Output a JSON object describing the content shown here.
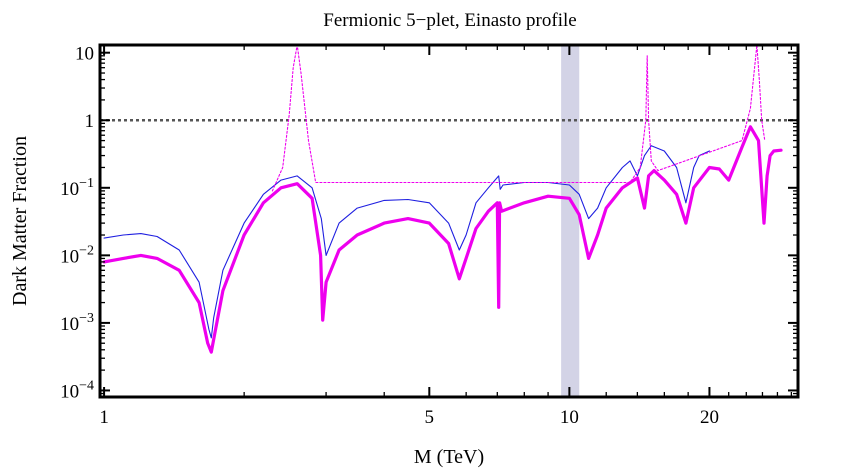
{
  "chart_data": {
    "type": "line",
    "title": "Fermionic 5−plet, Einasto profile",
    "xlabel": "M (TeV)",
    "ylabel": "Dark Matter Fraction",
    "xscale": "log",
    "yscale": "log",
    "xlim": [
      0.98,
      31
    ],
    "ylim": [
      8e-05,
      13
    ],
    "x_ticks": [
      {
        "value": 1,
        "label": "1"
      },
      {
        "value": 5,
        "label": "5"
      },
      {
        "value": 10,
        "label": "10"
      },
      {
        "value": 20,
        "label": "20"
      }
    ],
    "y_ticks": [
      {
        "value": 10,
        "base": "10",
        "exp": ""
      },
      {
        "value": 1,
        "base": "1",
        "exp": ""
      },
      {
        "value": 0.1,
        "base": "10",
        "exp": "−1"
      },
      {
        "value": 0.01,
        "base": "10",
        "exp": "−2"
      },
      {
        "value": 0.001,
        "base": "10",
        "exp": "−3"
      },
      {
        "value": 0.0001,
        "base": "10",
        "exp": "−4"
      }
    ],
    "reference_line": {
      "y": 1,
      "style": "dotted",
      "color": "#555555"
    },
    "shaded_band": {
      "x_range": [
        9.6,
        10.5
      ],
      "color": "#d3d3e6"
    },
    "series": [
      {
        "name": "blue-thin",
        "color": "#1f1fe0",
        "style": "solid",
        "x": [
          1.0,
          1.1,
          1.2,
          1.3,
          1.45,
          1.6,
          1.68,
          1.7,
          1.72,
          1.8,
          2.0,
          2.2,
          2.4,
          2.6,
          2.8,
          2.93,
          3.0,
          3.2,
          3.5,
          4.0,
          4.5,
          5.0,
          5.5,
          5.8,
          6.0,
          6.3,
          6.7,
          7.05,
          7.1,
          7.2,
          8.0,
          9.0,
          10.0,
          10.5,
          11.0,
          11.5,
          12.0,
          13.0,
          13.5,
          14.0,
          14.5,
          15.0,
          16.0,
          17.0,
          17.8,
          18.5,
          19.0,
          20.0
        ],
        "y": [
          0.018,
          0.02,
          0.021,
          0.019,
          0.012,
          0.004,
          0.0008,
          0.0006,
          0.0012,
          0.006,
          0.03,
          0.08,
          0.13,
          0.15,
          0.1,
          0.035,
          0.01,
          0.03,
          0.05,
          0.065,
          0.067,
          0.06,
          0.03,
          0.012,
          0.02,
          0.06,
          0.1,
          0.15,
          0.095,
          0.11,
          0.12,
          0.12,
          0.11,
          0.08,
          0.035,
          0.05,
          0.1,
          0.2,
          0.25,
          0.15,
          0.3,
          0.42,
          0.35,
          0.2,
          0.06,
          0.2,
          0.3,
          0.35
        ]
      },
      {
        "name": "magenta-thick",
        "color": "#ee00ee",
        "style": "solid-thick",
        "x": [
          1.0,
          1.1,
          1.2,
          1.3,
          1.45,
          1.6,
          1.67,
          1.7,
          1.73,
          1.8,
          2.0,
          2.2,
          2.4,
          2.6,
          2.8,
          2.92,
          2.95,
          3.0,
          3.2,
          3.5,
          4.0,
          4.5,
          5.0,
          5.5,
          5.8,
          6.0,
          6.3,
          6.7,
          7.0,
          7.05,
          7.08,
          7.15,
          8.0,
          9.0,
          10.0,
          10.5,
          11.0,
          11.5,
          12.0,
          13.0,
          14.0,
          14.5,
          14.8,
          15.2,
          16.0,
          17.0,
          17.8,
          18.5,
          20.0,
          21.0,
          22.0,
          23.5,
          24.5,
          25.5,
          26.2,
          26.6,
          27.0,
          27.5,
          28.5
        ],
        "y": [
          0.008,
          0.009,
          0.01,
          0.009,
          0.006,
          0.002,
          0.0005,
          0.00037,
          0.0007,
          0.003,
          0.02,
          0.06,
          0.1,
          0.115,
          0.07,
          0.01,
          0.0011,
          0.004,
          0.012,
          0.02,
          0.03,
          0.035,
          0.03,
          0.015,
          0.0045,
          0.009,
          0.025,
          0.045,
          0.06,
          0.0017,
          0.06,
          0.045,
          0.06,
          0.075,
          0.07,
          0.04,
          0.009,
          0.02,
          0.05,
          0.1,
          0.14,
          0.05,
          0.15,
          0.18,
          0.13,
          0.08,
          0.03,
          0.1,
          0.2,
          0.19,
          0.13,
          0.4,
          0.8,
          0.5,
          0.03,
          0.15,
          0.3,
          0.35,
          0.36
        ]
      },
      {
        "name": "magenta-dotted",
        "color": "#ee00ee",
        "style": "dotted",
        "x": [
          2.3,
          2.42,
          2.5,
          2.55,
          2.6,
          2.65,
          2.75,
          2.85,
          13.5,
          14.2,
          14.6,
          14.7,
          14.8,
          15.0,
          15.5,
          23.5,
          24.5,
          25.3,
          25.6,
          25.9,
          26.3
        ],
        "y": [
          0.09,
          0.2,
          1.2,
          6.0,
          13,
          5.0,
          0.5,
          0.12,
          0.12,
          0.2,
          1.0,
          9.0,
          1.0,
          0.25,
          0.18,
          0.5,
          1.5,
          13,
          4.0,
          1.0,
          0.5
        ]
      }
    ]
  }
}
